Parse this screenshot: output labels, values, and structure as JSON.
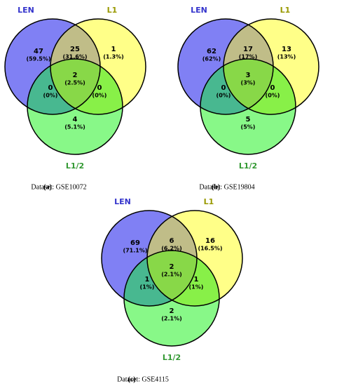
{
  "venns": [
    {
      "sets": [
        "LEN",
        "L1",
        "L1/2"
      ],
      "regions": [
        {
          "count": 47,
          "percent": "(59.5%)"
        },
        {
          "count": 25,
          "percent": "(31.6%)"
        },
        {
          "count": 1,
          "percent": "(1.3%)"
        },
        {
          "count": 2,
          "percent": "(2.5%)"
        },
        {
          "count": 0,
          "percent": "(0%)"
        },
        {
          "count": 0,
          "percent": "(0%)"
        },
        {
          "count": 4,
          "percent": "(5.1%)"
        }
      ],
      "caption": {
        "tag": "(a)",
        "text": "Dataset: GSE10072"
      }
    },
    {
      "sets": [
        "LEN",
        "L1",
        "L1/2"
      ],
      "regions": [
        {
          "count": 62,
          "percent": "(62%)"
        },
        {
          "count": 17,
          "percent": "(17%)"
        },
        {
          "count": 13,
          "percent": "(13%)"
        },
        {
          "count": 3,
          "percent": "(3%)"
        },
        {
          "count": 0,
          "percent": "(0%)"
        },
        {
          "count": 0,
          "percent": "(0%)"
        },
        {
          "count": 5,
          "percent": "(5%)"
        }
      ],
      "caption": {
        "tag": "(b)",
        "text": "Dataset: GSE19804"
      }
    },
    {
      "sets": [
        "LEN",
        "L1",
        "L1/2"
      ],
      "regions": [
        {
          "count": 69,
          "percent": "(71.1%)"
        },
        {
          "count": 6,
          "percent": "(6.2%)"
        },
        {
          "count": 16,
          "percent": "(16.5%)"
        },
        {
          "count": 2,
          "percent": "(2.1%)"
        },
        {
          "count": 1,
          "percent": "(1%)"
        },
        {
          "count": 1,
          "percent": "(1%)"
        },
        {
          "count": 2,
          "percent": "(2.1%)"
        }
      ],
      "caption": {
        "tag": "(c)",
        "text": "Dataset: GSE4115"
      }
    }
  ]
}
